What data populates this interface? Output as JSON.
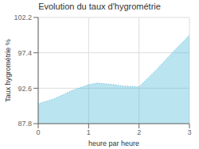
{
  "chart_data": {
    "type": "area",
    "title": "Evolution du taux d'hygrométrie",
    "xlabel": "heure par heure",
    "ylabel": "Taux hygrométrie %",
    "x": [
      0,
      0.33,
      0.67,
      1.0,
      1.17,
      1.33,
      1.5,
      1.67,
      2.0,
      2.33,
      2.67,
      3.0
    ],
    "values": [
      90.5,
      91.2,
      92.3,
      93.1,
      93.3,
      93.2,
      93.1,
      92.9,
      92.8,
      95.0,
      97.5,
      99.8
    ],
    "xlim": [
      0,
      3
    ],
    "ylim": [
      87.8,
      102.2
    ],
    "xticks": [
      0,
      1,
      2,
      3
    ],
    "yticks": [
      87.8,
      92.6,
      97.4,
      102.2
    ],
    "color": "#55bbdd",
    "line_style": "dotted",
    "grid": true
  }
}
